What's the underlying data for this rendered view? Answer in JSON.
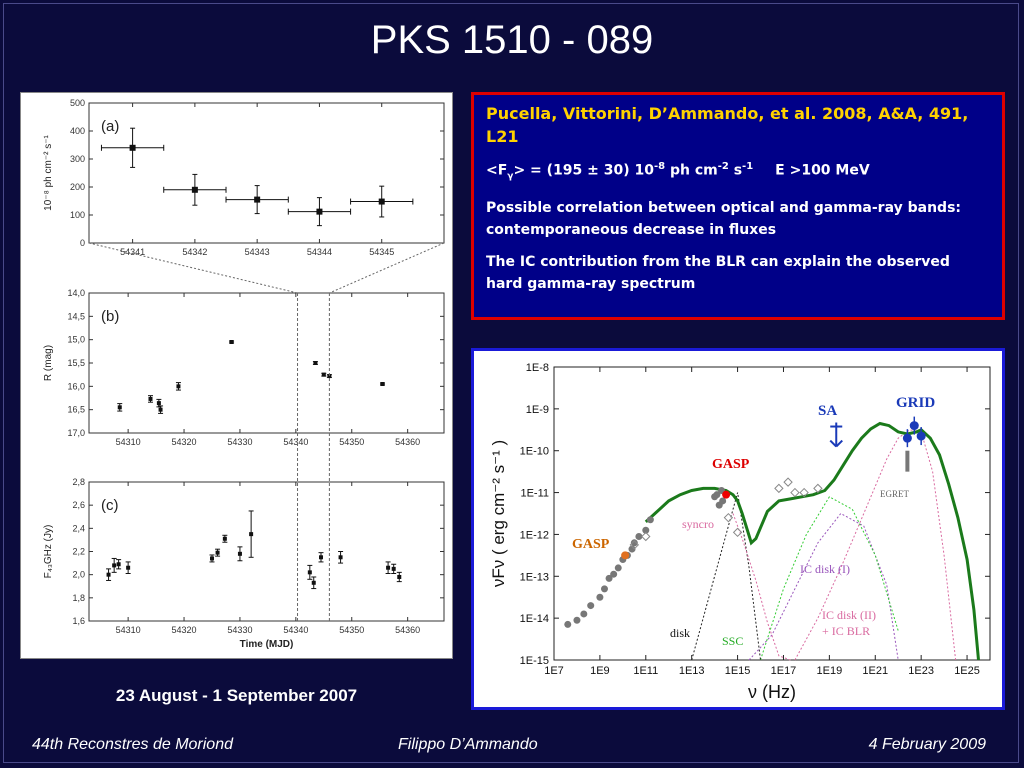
{
  "title": "PKS 1510 - 089",
  "caption": "23 August - 1 September 2007",
  "textbox": {
    "reference": "Pucella, Vittorini, D’Ammando, et al. 2008, A&A, 491, L21",
    "flux_open": "<F",
    "flux_sub": "γ",
    "flux_mid": "> = (195 ± 30) 10",
    "flux_exp1": "-8",
    "flux_unit1": " ph cm",
    "flux_exp2": "-2",
    "flux_unit2": " s",
    "flux_exp3": "-1",
    "flux_energy": "E >100 MeV",
    "para1": "Possible correlation between optical and gamma-ray bands: contemporaneous decrease in fluxes",
    "para2": "The IC contribution from the BLR can explain the observed hard gamma-ray spectrum"
  },
  "footer": {
    "left": "44th Reconstres de Moriond",
    "center": "Filippo D’Ammando",
    "right": "4 February 2009"
  },
  "chart_data": [
    {
      "type": "scatter",
      "panel": "(a)",
      "ylabel": "10⁻⁸ ph cm⁻² s⁻¹",
      "ylim": [
        0,
        500
      ],
      "yticks": [
        0,
        100,
        200,
        300,
        400,
        500
      ],
      "xticks": [
        54341,
        54342,
        54343,
        54344,
        54345
      ],
      "x": [
        54341,
        54342,
        54343,
        54344,
        54345
      ],
      "y": [
        340,
        190,
        155,
        112,
        148
      ],
      "yerr": [
        70,
        55,
        50,
        50,
        55
      ],
      "xerr": 0.5
    },
    {
      "type": "scatter",
      "panel": "(b)",
      "ylabel": "R (mag)",
      "ylim": [
        17.0,
        14.0
      ],
      "yticks": [
        "14,0",
        "14,5",
        "15,0",
        "15,5",
        "16,0",
        "16,5",
        "17,0"
      ],
      "yticks_num": [
        14.0,
        14.5,
        15.0,
        15.5,
        16.0,
        16.5,
        17.0
      ],
      "xticks": [
        54310,
        54320,
        54330,
        54340,
        54350,
        54360
      ],
      "x": [
        54308.5,
        54314,
        54315.5,
        54315.8,
        54319,
        54328.5,
        54343.5,
        54345,
        54346,
        54355.5
      ],
      "y": [
        16.45,
        16.27,
        16.36,
        16.5,
        16.0,
        15.05,
        15.5,
        15.75,
        15.78,
        15.95
      ],
      "yerr": [
        0.08,
        0.07,
        0.08,
        0.08,
        0.08,
        0.02,
        0.03,
        0.03,
        0.03,
        0.02
      ]
    },
    {
      "type": "scatter",
      "panel": "(c)",
      "ylabel": "F₄₃GHz (Jy)",
      "xlabel": "Time (MJD)",
      "ylim": [
        1.6,
        2.8
      ],
      "yticks": [
        "1,6",
        "1,8",
        "2,0",
        "2,2",
        "2,4",
        "2,6",
        "2,8"
      ],
      "yticks_num": [
        1.6,
        1.8,
        2.0,
        2.2,
        2.4,
        2.6,
        2.8
      ],
      "xticks": [
        54310,
        54320,
        54330,
        54340,
        54350,
        54360
      ],
      "x": [
        54306.5,
        54307.5,
        54308.3,
        54310,
        54325,
        54326,
        54327.3,
        54330,
        54332,
        54342.5,
        54343.2,
        54344.5,
        54348,
        54356.5,
        54357.5,
        54358.5
      ],
      "y": [
        2.0,
        2.08,
        2.09,
        2.06,
        2.14,
        2.19,
        2.31,
        2.18,
        2.35,
        2.02,
        1.93,
        2.15,
        2.15,
        2.06,
        2.05,
        1.98
      ],
      "yerr": [
        0.05,
        0.06,
        0.04,
        0.05,
        0.03,
        0.03,
        0.03,
        0.06,
        0.2,
        0.06,
        0.05,
        0.04,
        0.05,
        0.05,
        0.04,
        0.04
      ]
    },
    {
      "type": "line",
      "panel": "SED",
      "xlabel": "ν (Hz)",
      "ylabel": "νFν ( erg cm⁻² s⁻¹ )",
      "xlim_log": [
        7,
        26
      ],
      "ylim_log": [
        -15,
        -8
      ],
      "xticks": [
        "1E7",
        "1E9",
        "1E11",
        "1E13",
        "1E15",
        "1E17",
        "1E19",
        "1E21",
        "1E23",
        "1E25"
      ],
      "yticks": [
        "1E-15",
        "1E-14",
        "1E-13",
        "1E-12",
        "1E-11",
        "1E-10",
        "1E-9",
        "1E-8"
      ],
      "labels": {
        "gasp_radio": "GASP",
        "gasp_optical": "GASP",
        "sa": "SA",
        "grid": "GRID",
        "egret": "EGRET",
        "syncro": "syncro",
        "ic_disk1": "IC disk (I)",
        "ic_disk2": "IC disk (II)",
        "ic_blr": "+ IC BLR",
        "disk": "disk",
        "ssc": "SSC"
      },
      "colors": {
        "total": "#1b7a1b",
        "synchro": "#d96aa0",
        "disk": "#222222",
        "ssc": "#33cc33",
        "ic_disk1": "#9955bb",
        "ic_disk2": "#d96aa0",
        "gasp_label": "#cc6600",
        "gasp_opt_label": "#dd0000",
        "sa_grid_label": "#1a3ab8"
      },
      "series": [
        {
          "name": "total",
          "x": [
            11.0,
            11.5,
            12.0,
            12.5,
            13.0,
            13.5,
            14.0,
            14.5,
            14.8,
            15.0,
            15.2,
            15.6,
            15.8,
            16.3,
            16.8,
            17.3,
            17.8,
            18.3,
            18.8,
            19.2,
            19.6,
            20.0,
            20.4,
            20.8,
            21.2,
            21.6,
            22.0,
            22.4,
            22.8,
            23.0,
            23.4,
            23.8,
            24.2,
            24.6,
            25.0,
            25.3,
            25.5
          ],
          "y": [
            -11.7,
            -11.45,
            -11.2,
            -11.05,
            -10.95,
            -10.9,
            -10.9,
            -10.95,
            -11.05,
            -11.2,
            -11.5,
            -12.2,
            -12.1,
            -11.45,
            -11.2,
            -11.15,
            -11.1,
            -11.05,
            -10.95,
            -10.7,
            -10.35,
            -10.0,
            -9.7,
            -9.48,
            -9.35,
            -9.4,
            -9.55,
            -9.6,
            -9.55,
            -9.5,
            -9.7,
            -10.1,
            -10.8,
            -11.6,
            -12.6,
            -13.8,
            -15.0
          ]
        },
        {
          "name": "syncro",
          "x": [
            14.8,
            15.2,
            15.8,
            16.3,
            16.8,
            17.3
          ],
          "y": [
            -11.5,
            -12.1,
            -13.1,
            -14.1,
            -14.9,
            -15.0
          ]
        },
        {
          "name": "disk",
          "x": [
            13.0,
            13.5,
            14.0,
            14.5,
            15.0,
            15.5,
            16.0
          ],
          "y": [
            -15.0,
            -14.0,
            -13.0,
            -12.0,
            -11.0,
            -12.8,
            -15.0
          ]
        },
        {
          "name": "SSC",
          "x": [
            16.0,
            17.0,
            18.0,
            19.0,
            20.0,
            21.0,
            22.0
          ],
          "y": [
            -15.0,
            -13.3,
            -12.0,
            -11.1,
            -11.4,
            -12.5,
            -14.3
          ]
        },
        {
          "name": "IC disk (I)",
          "x": [
            15.5,
            16.5,
            17.5,
            18.5,
            19.5,
            20.5,
            21.5,
            22.0
          ],
          "y": [
            -15.0,
            -14.4,
            -13.3,
            -12.2,
            -11.5,
            -11.8,
            -13.2,
            -15.0
          ]
        },
        {
          "name": "IC disk (II) + IC BLR",
          "x": [
            17.5,
            18.5,
            19.5,
            20.5,
            21.5,
            22.0,
            22.5,
            23.0,
            23.5,
            24.0,
            24.5
          ],
          "y": [
            -15.0,
            -14.0,
            -12.8,
            -11.5,
            -10.2,
            -9.7,
            -9.5,
            -9.55,
            -10.5,
            -12.5,
            -15.0
          ]
        }
      ],
      "points": {
        "grey_radio_optical": {
          "x": [
            7.6,
            8.0,
            8.3,
            8.6,
            9.0,
            9.2,
            9.4,
            9.6,
            9.8,
            10.0,
            10.2,
            10.4,
            10.5,
            10.7,
            11.0,
            11.2,
            14.0,
            14.1,
            14.2,
            14.3,
            14.35
          ],
          "y": [
            -14.15,
            -14.05,
            -13.9,
            -13.7,
            -13.5,
            -13.3,
            -13.05,
            -12.95,
            -12.8,
            -12.6,
            -12.5,
            -12.35,
            -12.2,
            -12.05,
            -11.9,
            -11.65,
            -11.1,
            -11.05,
            -11.3,
            -10.95,
            -11.2
          ]
        },
        "open_points": {
          "x": [
            10.5,
            11.0,
            14.6,
            15.0,
            16.8,
            17.2,
            17.5,
            17.9,
            18.5
          ],
          "y": [
            -12.25,
            -12.05,
            -11.6,
            -11.95,
            -10.9,
            -10.75,
            -11.0,
            -11.0,
            -10.9
          ]
        },
        "gasp_radio_point": {
          "x": 10.1,
          "y": -12.5
        },
        "gasp_optical_point": {
          "x": 14.5,
          "y": -11.05
        },
        "grid_points": {
          "x": [
            22.4,
            22.7,
            23.0
          ],
          "y": [
            -9.7,
            -9.4,
            -9.65
          ]
        },
        "egret_bar": {
          "x": 22.4,
          "y1": -10.0,
          "y2": -10.5
        },
        "sa_limit": {
          "x": 19.3,
          "y": -9.9
        }
      }
    }
  ]
}
